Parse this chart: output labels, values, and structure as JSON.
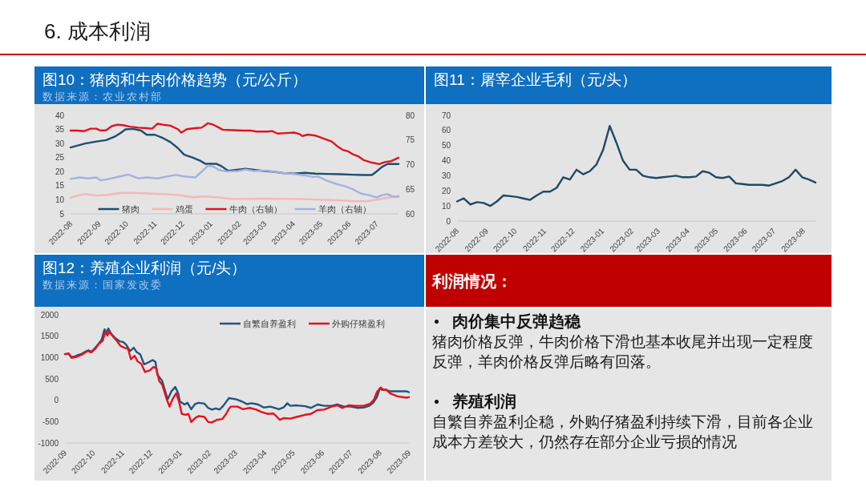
{
  "chart_data": [
    {
      "type": "other",
      "title": "6. 成本利润"
    },
    {
      "type": "line",
      "title": "图10：猪肉和牛肉价格趋势（元/公斤）",
      "subtitle": "数据来源：农业农村部",
      "xlim": [
        "2022-08-01",
        "2023-07-25"
      ],
      "xticks": [
        "2022-08",
        "2022-09",
        "2022-10",
        "2022-11",
        "2022-12",
        "2023-01",
        "2023-02",
        "2023-03",
        "2023-04",
        "2023-05",
        "2023-06",
        "2023-07"
      ],
      "ylim": [
        5,
        40
      ],
      "yticks": [
        5,
        10,
        15,
        20,
        25,
        30,
        35,
        40
      ],
      "y2lim": [
        60,
        80
      ],
      "y2ticks": [
        60,
        65,
        70,
        75,
        80
      ],
      "legend": "bottom",
      "series": [
        {
          "name": "猪肉",
          "color": "#1d4e6f",
          "x": [
            "2022-08-01",
            "2022-08-17",
            "2022-08-31",
            "2022-09-09",
            "2022-09-18",
            "2022-09-24",
            "2022-09-30",
            "2022-10-08",
            "2022-10-17",
            "2022-10-23",
            "2022-11-01",
            "2022-11-10",
            "2022-11-18",
            "2022-11-26",
            "2022-12-03",
            "2022-12-12",
            "2022-12-21",
            "2022-12-26",
            "2023-01-07",
            "2023-01-13",
            "2023-01-20",
            "2023-01-28",
            "2023-02-08",
            "2023-02-17",
            "2023-02-26",
            "2023-03-09",
            "2023-03-21",
            "2023-04-02",
            "2023-04-14",
            "2023-04-25",
            "2023-05-07",
            "2023-05-22",
            "2023-06-05",
            "2023-06-17",
            "2023-06-26",
            "2023-06-30",
            "2023-07-07",
            "2023-07-13",
            "2023-07-25"
          ],
          "values": [
            28.6,
            30,
            30.8,
            31.2,
            32.4,
            33.6,
            35,
            35.2,
            34.6,
            33.1,
            33.1,
            31.9,
            30.5,
            28.4,
            26,
            25,
            23.8,
            22.8,
            22.8,
            21.9,
            20.3,
            20.6,
            21,
            20.7,
            20.3,
            20,
            19.5,
            19.3,
            19.6,
            19.3,
            19.2,
            19.1,
            18.9,
            18.8,
            18.8,
            19.8,
            21.7,
            22.7,
            22.7
          ]
        },
        {
          "name": "鸡蛋",
          "color": "#f6b6b8",
          "x": [
            "2022-08-01",
            "2022-08-11",
            "2022-08-17",
            "2022-08-29",
            "2022-09-09",
            "2022-09-24",
            "2022-10-03",
            "2022-10-14",
            "2022-10-29",
            "2022-11-12",
            "2022-11-27",
            "2022-12-12",
            "2022-12-26",
            "2023-01-10",
            "2023-01-25",
            "2023-02-08",
            "2023-02-23",
            "2023-03-09",
            "2023-03-24",
            "2023-04-08",
            "2023-04-23",
            "2023-05-07",
            "2023-05-22",
            "2023-06-05",
            "2023-06-20",
            "2023-07-01",
            "2023-07-13",
            "2023-07-25"
          ],
          "values": [
            10.7,
            11.7,
            12,
            11.5,
            11.7,
            12.4,
            12.5,
            12.4,
            12.2,
            12,
            11.7,
            10.9,
            11.2,
            10.8,
            10.3,
            10.3,
            10.4,
            10.4,
            10.3,
            10.3,
            10.1,
            10,
            9.8,
            9.5,
            9.5,
            10,
            10.7,
            11.4
          ]
        },
        {
          "name": "牛肉（右轴）",
          "color": "#e0141e",
          "axis": "y2",
          "x": [
            "2022-08-01",
            "2022-08-08",
            "2022-08-16",
            "2022-08-23",
            "2022-08-29",
            "2022-09-03",
            "2022-09-09",
            "2022-09-15",
            "2022-09-21",
            "2022-09-27",
            "2022-10-05",
            "2022-10-14",
            "2022-10-23",
            "2022-10-29",
            "2022-11-04",
            "2022-11-10",
            "2022-11-18",
            "2022-11-26",
            "2022-11-30",
            "2022-12-06",
            "2022-12-15",
            "2022-12-22",
            "2022-12-29",
            "2023-01-04",
            "2023-01-10",
            "2023-01-14",
            "2023-01-25",
            "2023-02-05",
            "2023-02-14",
            "2023-02-20",
            "2023-03-04",
            "2023-03-09",
            "2023-03-15",
            "2023-03-24",
            "2023-04-02",
            "2023-04-08",
            "2023-04-11",
            "2023-04-17",
            "2023-04-25",
            "2023-05-04",
            "2023-05-13",
            "2023-05-20",
            "2023-05-25",
            "2023-05-31",
            "2023-06-05",
            "2023-06-11",
            "2023-06-17",
            "2023-06-26",
            "2023-07-04",
            "2023-07-10",
            "2023-07-17",
            "2023-07-25"
          ],
          "values": [
            76.9,
            76.9,
            76.8,
            77.3,
            77.3,
            76.9,
            77,
            77.8,
            78.1,
            78,
            77.7,
            77.5,
            77.4,
            77.3,
            78.3,
            78.1,
            77.9,
            77.2,
            76.5,
            77.2,
            77.4,
            77.5,
            78.4,
            78.1,
            77.5,
            77.1,
            77,
            76.9,
            76.9,
            76.7,
            76.7,
            76.8,
            76.3,
            76.4,
            76.5,
            76.2,
            75.8,
            76.1,
            75.9,
            75.3,
            74.7,
            73.6,
            73,
            72.7,
            72.1,
            71.7,
            70.9,
            70.4,
            70.1,
            70.5,
            70.7,
            71.4
          ]
        },
        {
          "name": "羊肉（右轴）",
          "color": "#a3b2de",
          "axis": "y2",
          "x": [
            "2022-08-01",
            "2022-08-11",
            "2022-08-20",
            "2022-08-29",
            "2022-09-03",
            "2022-09-12",
            "2022-09-24",
            "2022-10-03",
            "2022-10-14",
            "2022-10-23",
            "2022-11-04",
            "2022-11-12",
            "2022-11-24",
            "2022-12-03",
            "2022-12-15",
            "2022-12-23",
            "2022-12-29",
            "2023-01-04",
            "2023-01-10",
            "2023-01-19",
            "2023-01-31",
            "2023-02-08",
            "2023-02-17",
            "2023-03-01",
            "2023-03-09",
            "2023-03-21",
            "2023-04-02",
            "2023-04-14",
            "2023-04-23",
            "2023-04-28",
            "2023-05-07",
            "2023-05-16",
            "2023-05-28",
            "2023-06-05",
            "2023-06-14",
            "2023-06-23",
            "2023-07-01",
            "2023-07-07",
            "2023-07-13",
            "2023-07-19",
            "2023-07-25"
          ],
          "values": [
            67.1,
            67.4,
            67.2,
            67.4,
            66.8,
            67.1,
            67.6,
            68,
            67.2,
            67.4,
            67.2,
            67.5,
            67.9,
            67.6,
            67.4,
            68.7,
            69.8,
            69.6,
            68.9,
            68.6,
            68.7,
            69,
            68.7,
            68.8,
            68.6,
            68.3,
            68.1,
            67.8,
            67.5,
            67.6,
            66.8,
            66.2,
            65.6,
            65,
            64.1,
            63.8,
            63.3,
            63.8,
            64,
            63.5,
            63.5
          ]
        }
      ]
    },
    {
      "type": "line",
      "title": "图11：屠宰企业毛利（元/头）",
      "xlim": [
        "2022-08-01",
        "2023-08-14"
      ],
      "xticks": [
        "2022-08",
        "2022-09",
        "2022-10",
        "2022-11",
        "2022-12",
        "2023-01",
        "2023-02",
        "2023-03",
        "2023-04",
        "2023-05",
        "2023-06",
        "2023-07",
        "2023-08"
      ],
      "ylim": [
        0,
        70
      ],
      "yticks": [
        0,
        10,
        20,
        30,
        40,
        50,
        60,
        70
      ],
      "color": "#1f4a66",
      "x": [
        "2022-08-01",
        "2022-08-08",
        "2022-08-15",
        "2022-08-22",
        "2022-08-29",
        "2022-09-05",
        "2022-09-12",
        "2022-09-19",
        "2022-09-26",
        "2022-10-03",
        "2022-10-10",
        "2022-10-17",
        "2022-10-24",
        "2022-10-31",
        "2022-11-07",
        "2022-11-14",
        "2022-11-21",
        "2022-11-28",
        "2022-12-05",
        "2022-12-12",
        "2022-12-19",
        "2022-12-26",
        "2023-01-02",
        "2023-01-09",
        "2023-01-16",
        "2023-01-23",
        "2023-01-30",
        "2023-02-06",
        "2023-02-13",
        "2023-02-20",
        "2023-02-27",
        "2023-03-06",
        "2023-03-13",
        "2023-03-20",
        "2023-03-27",
        "2023-04-03",
        "2023-04-10",
        "2023-04-17",
        "2023-04-24",
        "2023-05-01",
        "2023-05-08",
        "2023-05-15",
        "2023-05-22",
        "2023-05-29",
        "2023-06-05",
        "2023-06-12",
        "2023-06-19",
        "2023-06-26",
        "2023-07-03",
        "2023-07-10",
        "2023-07-17",
        "2023-07-24",
        "2023-07-31",
        "2023-08-07",
        "2023-08-14"
      ],
      "values": [
        13,
        15,
        11,
        12.5,
        12,
        10,
        13,
        17,
        16.5,
        16,
        15,
        14,
        17,
        19.5,
        19.5,
        22,
        29,
        27.5,
        34,
        31,
        33,
        37.5,
        47,
        63,
        52,
        40,
        34,
        34,
        30,
        29,
        28.5,
        29,
        29.5,
        30,
        29,
        29,
        29.5,
        33,
        32,
        29,
        28.5,
        29.5,
        25,
        24.5,
        24,
        24,
        24,
        23.5,
        25,
        26.5,
        29,
        34,
        29,
        27.5,
        25.5
      ]
    },
    {
      "type": "line",
      "title": "图12：养殖企业利润（元/头）",
      "subtitle": "数据来源：国家发改委",
      "xlim": [
        "2022-09-01",
        "2023-09-01"
      ],
      "xticks": [
        "2022-09",
        "2022-10",
        "2022-11",
        "2022-12",
        "2023-01",
        "2023-02",
        "2023-03",
        "2023-04",
        "2023-05",
        "2023-06",
        "2023-07",
        "2023-08",
        "2023-09"
      ],
      "ylim": [
        -1000,
        2000
      ],
      "yticks": [
        -1000,
        -500,
        0,
        500,
        1000,
        1500,
        2000
      ],
      "legend": "top right",
      "series": [
        {
          "name": "自繁自养盈利",
          "color": "#1f5583",
          "x": [
            "2022-09-01",
            "2022-09-05",
            "2022-09-08",
            "2022-09-11",
            "2022-09-15",
            "2022-09-19",
            "2022-09-23",
            "2022-09-26",
            "2022-09-29",
            "2022-10-02",
            "2022-10-06",
            "2022-10-10",
            "2022-10-13",
            "2022-10-15",
            "2022-10-17",
            "2022-10-20",
            "2022-10-24",
            "2022-10-29",
            "2022-11-02",
            "2022-11-05",
            "2022-11-09",
            "2022-11-13",
            "2022-11-16",
            "2022-11-20",
            "2022-11-24",
            "2022-11-28",
            "2022-12-03",
            "2022-12-06",
            "2022-12-08",
            "2022-12-13",
            "2022-12-16",
            "2022-12-19",
            "2022-12-23",
            "2022-12-27",
            "2022-12-30",
            "2023-01-01",
            "2023-01-06",
            "2023-01-09",
            "2023-01-13",
            "2023-01-17",
            "2023-01-21",
            "2023-01-27",
            "2023-01-31",
            "2023-02-04",
            "2023-02-08",
            "2023-02-12",
            "2023-02-16",
            "2023-02-22",
            "2023-03-02",
            "2023-03-08",
            "2023-03-13",
            "2023-03-18",
            "2023-03-25",
            "2023-03-31",
            "2023-04-07",
            "2023-04-16",
            "2023-04-21",
            "2023-04-25",
            "2023-04-28",
            "2023-05-05",
            "2023-05-14",
            "2023-05-20",
            "2023-05-27",
            "2023-06-03",
            "2023-06-11",
            "2023-06-17",
            "2023-06-24",
            "2023-07-01",
            "2023-07-09",
            "2023-07-15",
            "2023-07-21",
            "2023-07-25",
            "2023-07-29",
            "2023-08-01",
            "2023-08-04",
            "2023-08-06",
            "2023-08-12",
            "2023-08-20",
            "2023-08-29",
            "2023-09-01"
          ],
          "values": [
            1080,
            1090,
            1010,
            1020,
            1060,
            1090,
            1140,
            1170,
            1130,
            1200,
            1300,
            1420,
            1660,
            1580,
            1680,
            1560,
            1460,
            1380,
            1360,
            1300,
            1150,
            1230,
            1130,
            1070,
            840,
            880,
            940,
            900,
            600,
            460,
            240,
            20,
            210,
            310,
            170,
            -30,
            -100,
            -60,
            -210,
            -90,
            -60,
            -80,
            -180,
            -220,
            -190,
            -220,
            -130,
            50,
            20,
            -30,
            -90,
            -70,
            -100,
            -170,
            -150,
            -210,
            -170,
            -70,
            -130,
            -120,
            -140,
            -180,
            -100,
            -130,
            -130,
            -100,
            -150,
            -150,
            -180,
            -170,
            -130,
            -60,
            70,
            270,
            240,
            250,
            210,
            210,
            210,
            190
          ]
        },
        {
          "name": "外购仔猪盈利",
          "color": "#e3121c",
          "x": [
            "2022-09-01",
            "2022-09-05",
            "2022-09-08",
            "2022-09-14",
            "2022-09-19",
            "2022-09-25",
            "2022-09-29",
            "2022-10-03",
            "2022-10-07",
            "2022-10-11",
            "2022-10-14",
            "2022-10-16",
            "2022-10-18",
            "2022-10-22",
            "2022-10-26",
            "2022-10-30",
            "2022-11-03",
            "2022-11-07",
            "2022-11-10",
            "2022-11-14",
            "2022-11-17",
            "2022-11-21",
            "2022-11-25",
            "2022-11-30",
            "2022-12-04",
            "2022-12-07",
            "2022-12-10",
            "2022-12-13",
            "2022-12-15",
            "2022-12-18",
            "2022-12-21",
            "2022-12-24",
            "2022-12-28",
            "2022-12-31",
            "2023-01-03",
            "2023-01-07",
            "2023-01-10",
            "2023-01-13",
            "2023-01-17",
            "2023-01-21",
            "2023-01-27",
            "2023-01-31",
            "2023-02-04",
            "2023-02-09",
            "2023-02-15",
            "2023-02-19",
            "2023-02-22",
            "2023-02-24",
            "2023-03-03",
            "2023-03-09",
            "2023-03-16",
            "2023-03-23",
            "2023-03-28",
            "2023-04-04",
            "2023-04-10",
            "2023-04-14",
            "2023-04-17",
            "2023-04-21",
            "2023-04-28",
            "2023-05-05",
            "2023-05-14",
            "2023-05-20",
            "2023-05-27",
            "2023-06-03",
            "2023-06-11",
            "2023-06-17",
            "2023-06-22",
            "2023-06-29",
            "2023-07-06",
            "2023-07-15",
            "2023-07-22",
            "2023-07-26",
            "2023-07-29",
            "2023-08-02",
            "2023-08-05",
            "2023-08-08",
            "2023-08-12",
            "2023-08-20",
            "2023-08-29",
            "2023-09-01"
          ],
          "values": [
            1080,
            1090,
            990,
            1020,
            1070,
            1150,
            1120,
            1200,
            1320,
            1390,
            1610,
            1510,
            1610,
            1490,
            1390,
            1270,
            1230,
            1200,
            960,
            1040,
            910,
            850,
            660,
            700,
            780,
            740,
            450,
            370,
            240,
            20,
            -150,
            20,
            160,
            -30,
            -320,
            -340,
            -320,
            -510,
            -420,
            -370,
            -390,
            -510,
            -520,
            -460,
            -440,
            -320,
            -200,
            -150,
            -150,
            -210,
            -180,
            -220,
            -270,
            -320,
            -310,
            -390,
            -460,
            -420,
            -430,
            -390,
            -340,
            -320,
            -230,
            -220,
            -150,
            -120,
            -180,
            -120,
            -130,
            -130,
            -80,
            20,
            190,
            300,
            240,
            250,
            160,
            90,
            60,
            70
          ]
        }
      ]
    },
    {
      "type": "other",
      "title": "利润情况："
    },
    {
      "type": "other",
      "title": "肉价集中反弹趋稳",
      "annotations": [
        "猪肉价格反弹，牛肉价格下滑也基本收尾并出现一定程度反弹，羊肉价格反弹后略有回落。"
      ]
    },
    {
      "type": "other",
      "title": "养殖利润",
      "annotations": [
        "自繁自养盈利企稳，外购仔猪盈利持续下滑，目前各企业成本方差较大，仍然存在部分企业亏损的情况"
      ]
    }
  ]
}
